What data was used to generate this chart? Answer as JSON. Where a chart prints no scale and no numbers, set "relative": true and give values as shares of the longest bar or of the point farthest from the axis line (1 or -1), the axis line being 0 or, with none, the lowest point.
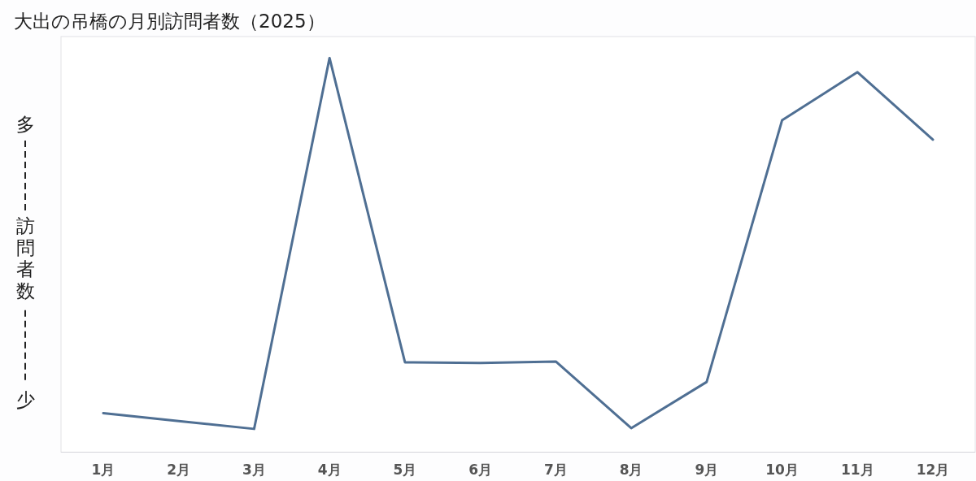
{
  "chart_data": {
    "type": "line",
    "title": "大出の吊橋の月別訪問者数（2025）",
    "ylabel": "訪問者数",
    "annotations": [
      "多",
      "少"
    ],
    "categories": [
      "1月",
      "2月",
      "3月",
      "4月",
      "5月",
      "6月",
      "7月",
      "8月",
      "9月",
      "10月",
      "11月",
      "12月"
    ],
    "relative": true,
    "marker": "none",
    "line_style": "solid",
    "series": [
      {
        "color": "#4f6f93",
        "values": [
          0.099,
          0.079,
          0.059,
          1,
          0.228,
          0.226,
          0.23,
          0.061,
          0.178,
          0.842,
          0.964,
          0.793
        ]
      }
    ]
  }
}
